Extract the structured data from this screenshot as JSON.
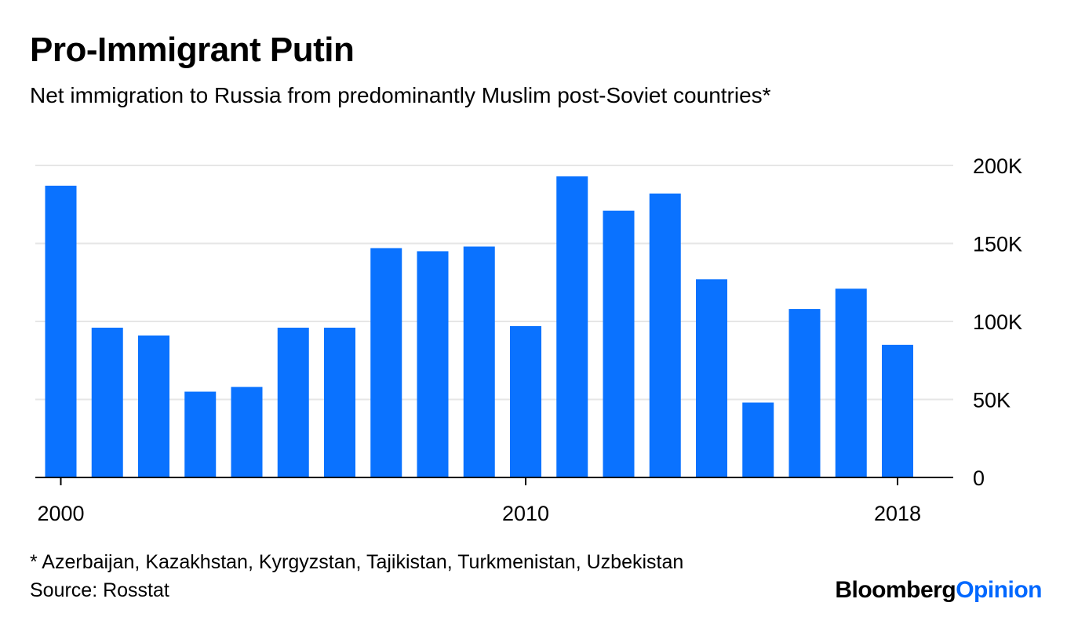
{
  "title": "Pro-Immigrant Putin",
  "subtitle": "Net immigration to Russia from predominantly Muslim post-Soviet countries*",
  "footnote": "* Azerbaijan, Kazakhstan, Kyrgyzstan, Tajikistan, Turkmenistan, Uzbekistan",
  "source": "Source: Rosstat",
  "brand": {
    "part1": "Bloomberg",
    "part2": "Opinion"
  },
  "colors": {
    "bar": "#0a72ff",
    "brand_accent": "#0068ff",
    "grid": "#e6e6e6",
    "axis": "#000000"
  },
  "chart_data": {
    "type": "bar",
    "title": "Pro-Immigrant Putin",
    "subtitle": "Net immigration to Russia from predominantly Muslim post-Soviet countries*",
    "xlabel": "",
    "ylabel": "",
    "x": [
      2000,
      2001,
      2002,
      2003,
      2004,
      2005,
      2006,
      2007,
      2008,
      2009,
      2010,
      2011,
      2012,
      2013,
      2014,
      2015,
      2016,
      2017,
      2018
    ],
    "values": [
      187000,
      96000,
      91000,
      55000,
      58000,
      96000,
      96000,
      147000,
      145000,
      148000,
      97000,
      193000,
      171000,
      182000,
      127000,
      48000,
      108000,
      121000,
      85000
    ],
    "ylim": [
      0,
      200000
    ],
    "yticks": [
      0,
      50000,
      100000,
      150000,
      200000
    ],
    "ytick_labels": [
      "0",
      "50K",
      "100K",
      "150K",
      "200K"
    ],
    "xticks": [
      2000,
      2010,
      2018
    ],
    "xtick_labels": [
      "2000",
      "2010",
      "2018"
    ],
    "grid": true,
    "y_axis_side": "right"
  }
}
